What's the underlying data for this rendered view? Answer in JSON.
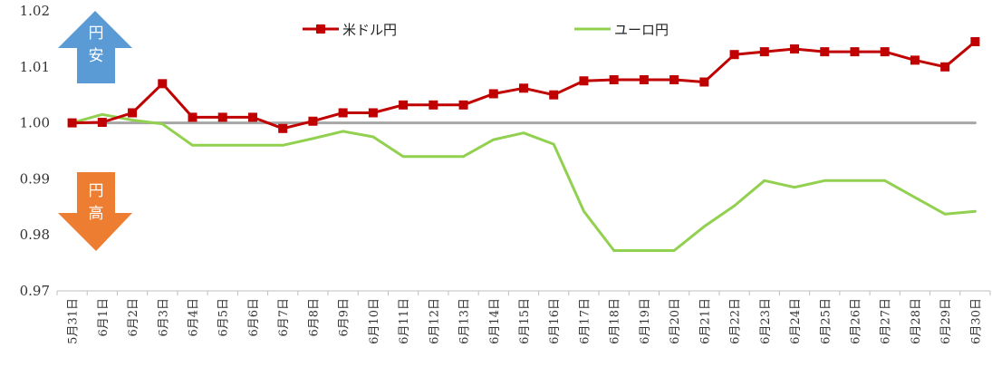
{
  "chart_data": {
    "type": "line",
    "title": "",
    "xlabel": "",
    "ylabel": "",
    "ylim": [
      0.97,
      1.02
    ],
    "y_ticks": [
      "0.97",
      "0.98",
      "0.99",
      "1.00",
      "1.01",
      "1.02"
    ],
    "grid": false,
    "legend_position": "top",
    "categories": [
      "5月31日",
      "6月1日",
      "6月2日",
      "6月3日",
      "6月4日",
      "6月5日",
      "6月6日",
      "6月7日",
      "6月8日",
      "6月9日",
      "6月10日",
      "6月11日",
      "6月12日",
      "6月13日",
      "6月14日",
      "6月15日",
      "6月16日",
      "6月17日",
      "6月18日",
      "6月19日",
      "6月20日",
      "6月21日",
      "6月22日",
      "6月23日",
      "6月24日",
      "6月25日",
      "6月26日",
      "6月27日",
      "6月28日",
      "6月29日",
      "6月30日"
    ],
    "series": [
      {
        "name": "米ドル円",
        "color": "#C00000",
        "marker": "square",
        "values": [
          1.0,
          1.0001,
          1.0018,
          1.007,
          1.001,
          1.001,
          1.001,
          0.999,
          1.0003,
          1.0018,
          1.0018,
          1.0032,
          1.0032,
          1.0032,
          1.0052,
          1.0062,
          1.005,
          1.0075,
          1.0077,
          1.0077,
          1.0077,
          1.0073,
          1.0122,
          1.0127,
          1.0132,
          1.0127,
          1.0127,
          1.0127,
          1.0112,
          1.01,
          1.0145
        ]
      },
      {
        "name": "ユーロ円",
        "color": "#92D050",
        "marker": "none",
        "values": [
          1.0,
          1.0015,
          1.0005,
          0.9998,
          0.996,
          0.996,
          0.996,
          0.996,
          0.9972,
          0.9985,
          0.9975,
          0.994,
          0.994,
          0.994,
          0.997,
          0.9982,
          0.9962,
          0.9842,
          0.9772,
          0.9772,
          0.9772,
          0.9815,
          0.9852,
          0.9897,
          0.9885,
          0.9897,
          0.9897,
          0.9897,
          0.9867,
          0.9837,
          0.9842
        ]
      },
      {
        "name": "baseline",
        "color": "#A6A6A6",
        "marker": "none",
        "values": [
          1.0,
          1.0,
          1.0,
          1.0,
          1.0,
          1.0,
          1.0,
          1.0,
          1.0,
          1.0,
          1.0,
          1.0,
          1.0,
          1.0,
          1.0,
          1.0,
          1.0,
          1.0,
          1.0,
          1.0,
          1.0,
          1.0,
          1.0,
          1.0,
          1.0,
          1.0,
          1.0,
          1.0,
          1.0,
          1.0,
          1.0
        ]
      }
    ],
    "annotations": [
      {
        "text": "円\n安",
        "direction": "up",
        "color": "#5B9BD5"
      },
      {
        "text": "円\n高",
        "direction": "down",
        "color": "#ED7D31"
      }
    ]
  }
}
